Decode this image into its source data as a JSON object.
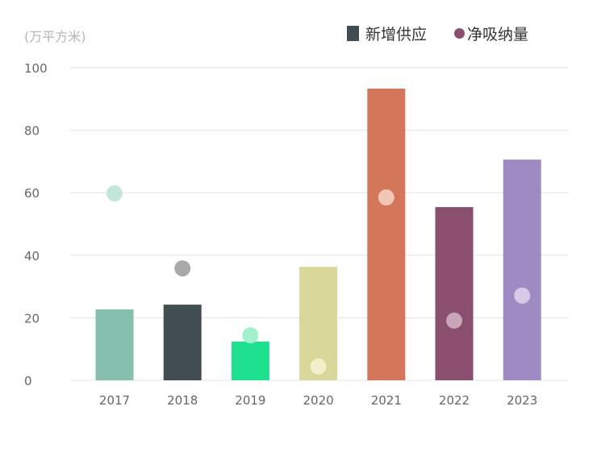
{
  "chart_data": {
    "type": "bar",
    "title": "",
    "ylabel": "(万平方米)",
    "xlabel": "",
    "ylim": [
      0,
      100
    ],
    "yticks": [
      0,
      20,
      40,
      60,
      80,
      100
    ],
    "grid": true,
    "legend_position": "top-right",
    "categories": [
      "2017",
      "2018",
      "2019",
      "2020",
      "2021",
      "2022",
      "2023"
    ],
    "series": [
      {
        "name": "新增供应",
        "kind": "bar",
        "values": [
          22.7,
          24.2,
          12.4,
          36.3,
          93.3,
          55.4,
          70.6
        ],
        "colors": [
          "#86bfae",
          "#424d52",
          "#1ee08f",
          "#d9d79a",
          "#d4765a",
          "#8a4e6e",
          "#a08ac3"
        ]
      },
      {
        "name": "净吸纳量",
        "kind": "dot",
        "values": [
          59.8,
          35.8,
          14.4,
          4.4,
          58.5,
          19.1,
          27.1
        ],
        "colors": [
          "#c4e6da",
          "#a9a9a9",
          "#a2f0cc",
          "#f3efcc",
          "#f0c7b6",
          "#c9a5b8",
          "#d8c9e6"
        ]
      }
    ]
  }
}
